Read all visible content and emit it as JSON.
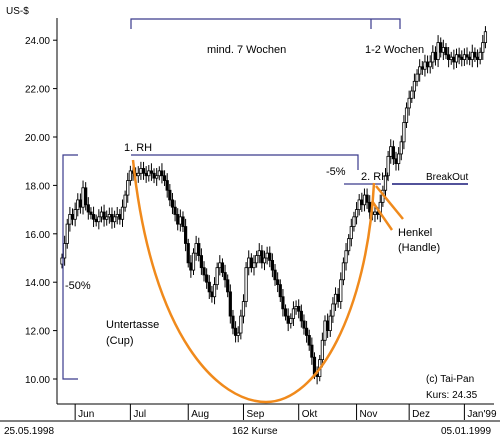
{
  "chart_data": {
    "type": "candlestick",
    "y_unit_label": "US-$",
    "ylim": [
      9,
      25.6
    ],
    "y_ticks": [
      10,
      12,
      14,
      16,
      18,
      20,
      22,
      24
    ],
    "y_tick_labels": [
      "10.00",
      "12.00",
      "14.00",
      "16.00",
      "18.00",
      "20.00",
      "22.00",
      "24.00"
    ],
    "x_month_labels": [
      {
        "label": "Jun",
        "session": 5
      },
      {
        "label": "Jul",
        "session": 26
      },
      {
        "label": "Aug",
        "session": 48
      },
      {
        "label": "Sep",
        "session": 69
      },
      {
        "label": "Okt",
        "session": 90
      },
      {
        "label": "Nov",
        "session": 112
      },
      {
        "label": "Dez",
        "session": 132
      },
      {
        "label": "Jan'99",
        "session": 153
      }
    ],
    "footer": {
      "start": "25.05.1998",
      "count": "162 Kurse",
      "end": "05.01.1999"
    },
    "copyright": "(c) Tai-Pan",
    "last_price": "Kurs: 24.35",
    "session_count": 162,
    "closes": [
      15.0,
      15.6,
      16.4,
      16.8,
      16.6,
      17.0,
      17.4,
      17.1,
      17.9,
      17.2,
      16.9,
      16.8,
      16.6,
      16.5,
      16.7,
      16.9,
      16.6,
      16.7,
      16.8,
      16.5,
      16.7,
      16.8,
      16.6,
      17.1,
      17.6,
      18.2,
      18.6,
      18.5,
      18.4,
      18.5,
      18.7,
      18.5,
      18.4,
      18.6,
      18.5,
      18.3,
      18.4,
      18.6,
      18.4,
      18.2,
      17.8,
      17.4,
      17.1,
      16.8,
      16.4,
      16.7,
      16.3,
      15.6,
      14.8,
      14.5,
      15.2,
      15.6,
      15.1,
      14.6,
      14.3,
      14.0,
      13.6,
      13.4,
      13.9,
      14.6,
      14.8,
      14.4,
      14.1,
      13.6,
      12.6,
      12.1,
      11.8,
      11.9,
      12.6,
      13.2,
      14.6,
      15.0,
      14.6,
      14.8,
      15.1,
      15.3,
      14.8,
      15.0,
      15.2,
      14.9,
      14.5,
      14.1,
      13.9,
      13.4,
      12.9,
      12.6,
      12.3,
      12.5,
      12.9,
      13.0,
      12.8,
      12.4,
      12.1,
      11.8,
      11.4,
      10.9,
      10.2,
      10.1,
      10.8,
      11.6,
      12.4,
      12.0,
      12.6,
      13.1,
      13.5,
      13.2,
      14.1,
      14.8,
      15.3,
      15.8,
      16.3,
      16.7,
      17.0,
      17.4,
      17.2,
      17.6,
      17.3,
      16.9,
      16.8,
      16.9,
      16.8,
      17.3,
      17.8,
      18.4,
      19.2,
      19.6,
      19.1,
      18.9,
      19.3,
      19.8,
      20.6,
      21.2,
      21.6,
      21.9,
      22.3,
      22.6,
      22.9,
      22.8,
      23.1,
      22.9,
      23.1,
      23.5,
      23.2,
      23.9,
      23.5,
      23.7,
      23.4,
      23.2,
      23.3,
      23.1,
      23.4,
      23.3,
      23.2,
      23.4,
      23.3,
      23.2,
      23.5,
      23.3,
      23.2,
      23.5,
      23.9,
      24.35
    ],
    "annotations": {
      "rh1": "1. RH",
      "rh2": "2. RH",
      "weeks7": "mind. 7 Wochen",
      "weeks12": "1-2 Wochen",
      "minus5": "-5%",
      "minus50": "-50%",
      "breakout": "BreakOut",
      "cup1": "Untertasse",
      "cup2": "(Cup)",
      "handle1": "Henkel",
      "handle2": "(Handle)"
    },
    "colors": {
      "axis": "#000000",
      "candle": "#000000",
      "annotation_line": "#3a3a8c",
      "cup_curve": "#f08a1c"
    }
  }
}
